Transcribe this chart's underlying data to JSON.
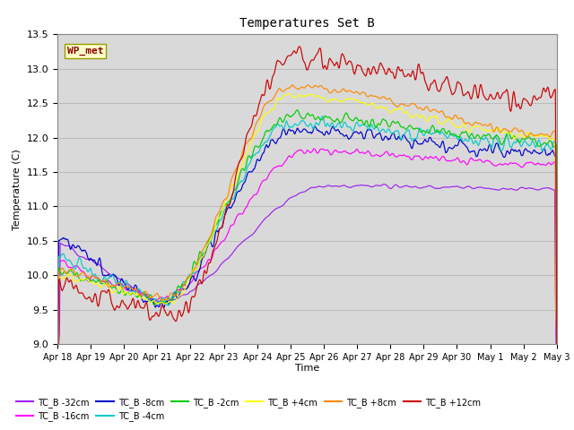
{
  "title": "Temperatures Set B",
  "xlabel": "Time",
  "ylabel": "Temperature (C)",
  "ylim": [
    9.0,
    13.5
  ],
  "yticks": [
    9.0,
    9.5,
    10.0,
    10.5,
    11.0,
    11.5,
    12.0,
    12.5,
    13.0,
    13.5
  ],
  "xtick_labels": [
    "Apr 18",
    "Apr 19",
    "Apr 20",
    "Apr 21",
    "Apr 22",
    "Apr 23",
    "Apr 24",
    "Apr 25",
    "Apr 26",
    "Apr 27",
    "Apr 28",
    "Apr 29",
    "Apr 30",
    "May 1",
    "May 2",
    "May 3"
  ],
  "series_labels": [
    "TC_B -32cm",
    "TC_B -16cm",
    "TC_B -8cm",
    "TC_B -4cm",
    "TC_B -2cm",
    "TC_B +4cm",
    "TC_B +8cm",
    "TC_B +12cm"
  ],
  "series_colors": [
    "#a020f0",
    "#ff00ff",
    "#0000cd",
    "#00cccc",
    "#00cc00",
    "#ffff00",
    "#ff8800",
    "#cc0000"
  ],
  "wp_met_label": "WP_met",
  "plot_bg_color": "#d9d9d9",
  "n_points": 720,
  "end_day": 15
}
